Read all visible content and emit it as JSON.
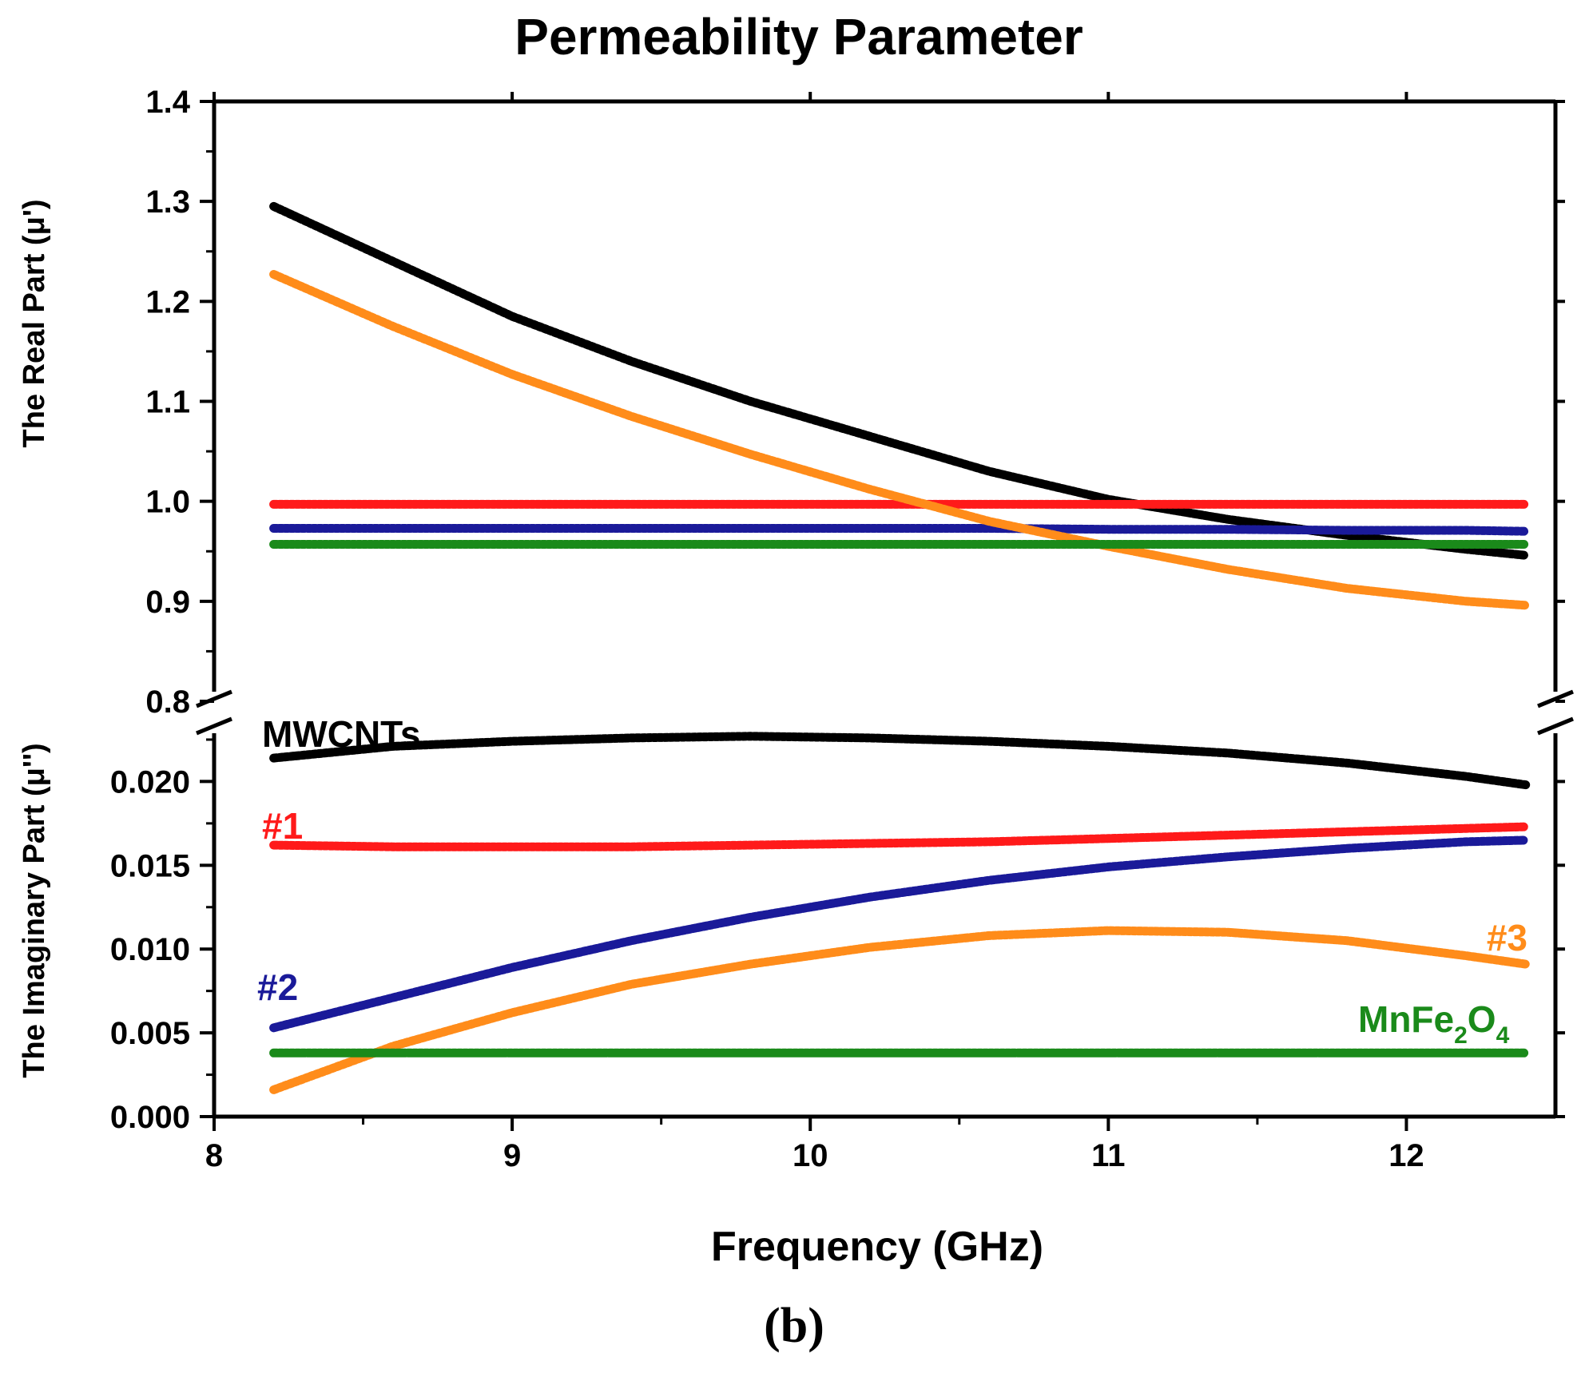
{
  "chart_data": {
    "type": "line",
    "title": "Permeability Parameter",
    "xlabel": "Frequency (GHz)",
    "caption": "(b)",
    "xlim": [
      8,
      12.5
    ],
    "x_ticks": [
      "8",
      "9",
      "10",
      "11",
      "12"
    ],
    "x_tick_values": [
      8,
      9,
      10,
      11,
      12
    ],
    "x_start": 8.2,
    "x_end": 12.4,
    "panels": {
      "real": {
        "ylabel": "The Real Part (μ')",
        "ylim": [
          0.8,
          1.4
        ],
        "y_ticks": [
          "0.8",
          "0.9",
          "1.0",
          "1.1",
          "1.2",
          "1.3",
          "1.4"
        ],
        "y_tick_values": [
          0.8,
          0.9,
          1.0,
          1.1,
          1.2,
          1.3,
          1.4
        ]
      },
      "imag": {
        "ylabel": "The Imaginary Part (μ'')",
        "ylim": [
          0.0,
          0.0235
        ],
        "y_ticks": [
          "0.000",
          "0.005",
          "0.010",
          "0.015",
          "0.020"
        ],
        "y_tick_values": [
          0.0,
          0.005,
          0.01,
          0.015,
          0.02
        ]
      }
    },
    "series": [
      {
        "name": "MWCNTs",
        "label": "MWCNTs",
        "color": "#000000",
        "x": [
          8.2,
          8.6,
          9.0,
          9.4,
          9.8,
          10.2,
          10.6,
          11.0,
          11.4,
          11.8,
          12.2,
          12.4
        ],
        "real": [
          1.295,
          1.24,
          1.185,
          1.14,
          1.1,
          1.065,
          1.03,
          1.002,
          0.982,
          0.966,
          0.952,
          0.946
        ],
        "imag": [
          0.0214,
          0.0221,
          0.0224,
          0.0226,
          0.0227,
          0.0226,
          0.0224,
          0.0221,
          0.0217,
          0.0211,
          0.0203,
          0.0198
        ]
      },
      {
        "name": "#1",
        "label": "#1",
        "color": "#ff1a1a",
        "x": [
          8.2,
          8.6,
          9.0,
          9.4,
          9.8,
          10.2,
          10.6,
          11.0,
          11.4,
          11.8,
          12.2,
          12.4
        ],
        "real": [
          0.997,
          0.997,
          0.997,
          0.997,
          0.997,
          0.997,
          0.997,
          0.997,
          0.997,
          0.997,
          0.997,
          0.997
        ],
        "imag": [
          0.0162,
          0.0161,
          0.0161,
          0.0161,
          0.0162,
          0.0163,
          0.0164,
          0.0166,
          0.0168,
          0.017,
          0.0172,
          0.0173
        ]
      },
      {
        "name": "#2",
        "label": "#2",
        "color": "#1a1a99",
        "x": [
          8.2,
          8.6,
          9.0,
          9.4,
          9.8,
          10.2,
          10.6,
          11.0,
          11.4,
          11.8,
          12.2,
          12.4
        ],
        "real": [
          0.973,
          0.973,
          0.973,
          0.973,
          0.973,
          0.973,
          0.973,
          0.972,
          0.972,
          0.971,
          0.971,
          0.97
        ],
        "imag": [
          0.0053,
          0.0071,
          0.0089,
          0.0105,
          0.0119,
          0.0131,
          0.0141,
          0.0149,
          0.0155,
          0.016,
          0.0164,
          0.0165
        ]
      },
      {
        "name": "#3",
        "label": "#3",
        "color": "#ff8c1a",
        "x": [
          8.2,
          8.6,
          9.0,
          9.4,
          9.8,
          10.2,
          10.6,
          11.0,
          11.4,
          11.8,
          12.2,
          12.4
        ],
        "real": [
          1.227,
          1.175,
          1.127,
          1.085,
          1.047,
          1.012,
          0.98,
          0.955,
          0.932,
          0.913,
          0.9,
          0.896
        ],
        "imag": [
          0.0016,
          0.0042,
          0.0062,
          0.0079,
          0.0091,
          0.0101,
          0.0108,
          0.0111,
          0.011,
          0.0105,
          0.0096,
          0.0091
        ]
      },
      {
        "name": "MnFe2O4",
        "label_main": "MnFe",
        "label_sub1": "2",
        "label_mid": "O",
        "label_sub2": "4",
        "color": "#1a8a1a",
        "x": [
          8.2,
          8.6,
          9.0,
          9.4,
          9.8,
          10.2,
          10.6,
          11.0,
          11.4,
          11.8,
          12.2,
          12.4
        ],
        "real": [
          0.957,
          0.957,
          0.957,
          0.957,
          0.957,
          0.957,
          0.957,
          0.957,
          0.957,
          0.957,
          0.957,
          0.957
        ],
        "imag": [
          0.0038,
          0.0038,
          0.0038,
          0.0038,
          0.0038,
          0.0038,
          0.0038,
          0.0038,
          0.0038,
          0.0038,
          0.0038,
          0.0038
        ]
      }
    ]
  }
}
